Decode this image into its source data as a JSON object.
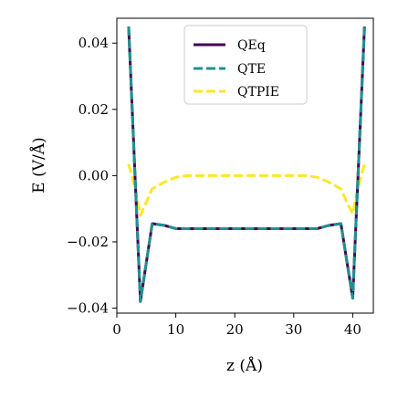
{
  "chart_data": {
    "type": "line",
    "title": "",
    "xlabel": "z (Å)",
    "ylabel": "E (V/Å)",
    "xlim": [
      0,
      43.5
    ],
    "ylim": [
      -0.0415,
      0.0475
    ],
    "xticks": [
      0,
      10,
      20,
      30,
      40
    ],
    "yticks": [
      -0.04,
      -0.02,
      0.0,
      0.02,
      0.04
    ],
    "xtick_labels": [
      "0",
      "10",
      "20",
      "30",
      "40"
    ],
    "ytick_labels": [
      "−0.04",
      "−0.02",
      "0.00",
      "0.02",
      "0.04"
    ],
    "grid": false,
    "legend_position": "top-center",
    "series": [
      {
        "name": "QEq",
        "color": "#440154",
        "style": "solid",
        "x": [
          2,
          4,
          6,
          8,
          10,
          12,
          14,
          16,
          18,
          20,
          22,
          24,
          26,
          28,
          30,
          32,
          34,
          36,
          38,
          40,
          42
        ],
        "y": [
          0.045,
          -0.038,
          -0.0145,
          -0.015,
          -0.016,
          -0.016,
          -0.016,
          -0.016,
          -0.016,
          -0.016,
          -0.016,
          -0.016,
          -0.016,
          -0.016,
          -0.016,
          -0.016,
          -0.016,
          -0.015,
          -0.0145,
          -0.037,
          0.045
        ]
      },
      {
        "name": "QTE",
        "color": "#21918c",
        "style": "dashed",
        "x": [
          2,
          4,
          6,
          8,
          10,
          12,
          14,
          16,
          18,
          20,
          22,
          24,
          26,
          28,
          30,
          32,
          34,
          36,
          38,
          40,
          42
        ],
        "y": [
          0.045,
          -0.038,
          -0.0145,
          -0.015,
          -0.016,
          -0.016,
          -0.016,
          -0.016,
          -0.016,
          -0.016,
          -0.016,
          -0.016,
          -0.016,
          -0.016,
          -0.016,
          -0.016,
          -0.016,
          -0.015,
          -0.0145,
          -0.037,
          0.045
        ]
      },
      {
        "name": "QTPIE",
        "color": "#fde725",
        "style": "dashed",
        "x": [
          2,
          3,
          4,
          5,
          6,
          8,
          10,
          12,
          14,
          16,
          18,
          20,
          22,
          24,
          26,
          28,
          30,
          32,
          34,
          36,
          38,
          39,
          40,
          41,
          42
        ],
        "y": [
          0.0035,
          -0.003,
          -0.012,
          -0.008,
          -0.004,
          -0.002,
          -0.0005,
          0.0,
          0.0,
          0.0,
          0.0,
          0.0,
          0.0,
          0.0,
          0.0,
          0.0,
          0.0,
          0.0,
          -0.0005,
          -0.002,
          -0.004,
          -0.008,
          -0.0115,
          -0.003,
          0.0035
        ]
      }
    ]
  }
}
